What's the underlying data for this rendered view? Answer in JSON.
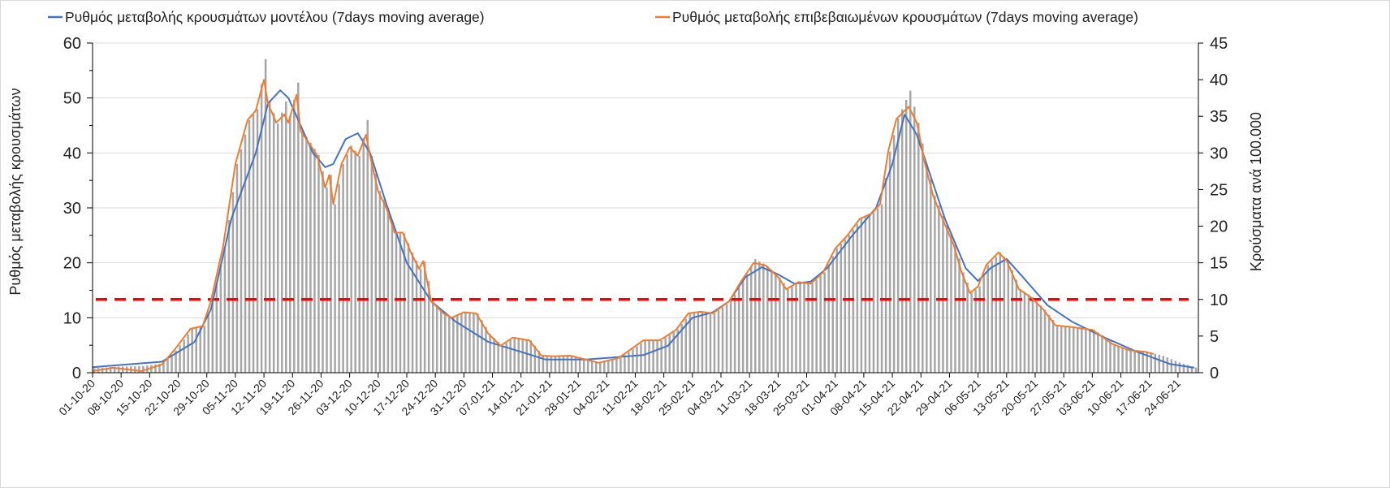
{
  "chart_data": {
    "type": "bar+line",
    "title": "",
    "ylabel_left": "Ρυθμός μεταβολής κρουσμάτων",
    "ylabel_right": "Κρούσματα ανά 100.000",
    "ylim_left": [
      0,
      60
    ],
    "ylim_right": [
      0,
      45
    ],
    "yticks_left": [
      "0",
      "10",
      "20",
      "30",
      "40",
      "50",
      "60"
    ],
    "yticks_right": [
      "0",
      "5",
      "10",
      "15",
      "20",
      "25",
      "30",
      "35",
      "40",
      "45"
    ],
    "x_unit": "days since 01-10-20",
    "x_range": [
      0,
      271
    ],
    "xtick_labels": [
      "01-10-20",
      "08-10-20",
      "15-10-20",
      "22-10-20",
      "29-10-20",
      "05-11-20",
      "12-11-20",
      "19-11-20",
      "26-11-20",
      "03-12-20",
      "10-12-20",
      "17-12-20",
      "24-12-20",
      "31-12-20",
      "07-01-21",
      "14-01-21",
      "21-01-21",
      "28-01-21",
      "04-02-21",
      "11-02-21",
      "18-02-21",
      "25-02-21",
      "04-03-21",
      "11-03-21",
      "18-03-21",
      "25-03-21",
      "01-04-21",
      "08-04-21",
      "15-04-21",
      "22-04-21",
      "29-04-21",
      "06-05-21",
      "13-05-21",
      "20-05-21",
      "27-05-21",
      "03-06-21",
      "10-06-21",
      "17-06-21",
      "24-06-21"
    ],
    "xtick_step_days": 7,
    "grid": true,
    "legend_position": "top",
    "threshold": {
      "axis": "right",
      "value": 10,
      "color": "#ff0000",
      "style": "dashed"
    },
    "bars": {
      "name": "Κρούσματα ανά 100.000",
      "axis": "right",
      "color": "#a6a6a6",
      "points": [
        [
          0,
          0.6
        ],
        [
          5,
          0.8
        ],
        [
          12,
          0.9
        ],
        [
          17,
          1.3
        ],
        [
          20,
          3
        ],
        [
          24,
          6
        ],
        [
          27,
          6.4
        ],
        [
          29,
          10
        ],
        [
          32,
          17
        ],
        [
          35,
          28.5
        ],
        [
          38,
          34.5
        ],
        [
          40,
          36
        ],
        [
          42,
          42.8
        ],
        [
          43,
          37
        ],
        [
          45,
          34
        ],
        [
          47,
          37
        ],
        [
          48,
          35
        ],
        [
          50,
          39.6
        ],
        [
          51,
          33
        ],
        [
          53,
          31.4
        ],
        [
          55,
          29.7
        ],
        [
          57,
          25.3
        ],
        [
          58,
          27
        ],
        [
          59,
          23
        ],
        [
          61,
          28.5
        ],
        [
          63,
          31
        ],
        [
          65,
          29.6
        ],
        [
          67,
          34.5
        ],
        [
          68,
          29.6
        ],
        [
          70,
          24.8
        ],
        [
          72,
          22.5
        ],
        [
          74,
          19
        ],
        [
          76,
          19
        ],
        [
          78,
          16.4
        ],
        [
          80,
          14.2
        ],
        [
          81,
          15.2
        ],
        [
          83,
          9.8
        ],
        [
          86,
          8.1
        ],
        [
          88,
          7.5
        ],
        [
          91,
          8.3
        ],
        [
          94,
          8.1
        ],
        [
          97,
          5.3
        ],
        [
          100,
          3.7
        ],
        [
          103,
          4.8
        ],
        [
          107,
          4.4
        ],
        [
          110,
          2.3
        ],
        [
          113,
          2.3
        ],
        [
          117,
          2.3
        ],
        [
          121,
          1.8
        ],
        [
          124,
          1.4
        ],
        [
          129,
          2
        ],
        [
          135,
          4.4
        ],
        [
          139,
          4.4
        ],
        [
          143,
          5.9
        ],
        [
          146,
          8.1
        ],
        [
          149,
          8.3
        ],
        [
          152,
          8.1
        ],
        [
          156,
          9.8
        ],
        [
          159,
          12.5
        ],
        [
          162,
          15.5
        ],
        [
          165,
          14.6
        ],
        [
          168,
          13
        ],
        [
          170,
          11.4
        ],
        [
          173,
          12.4
        ],
        [
          176,
          12.2
        ],
        [
          179,
          13.7
        ],
        [
          182,
          17
        ],
        [
          185,
          18.8
        ],
        [
          188,
          21
        ],
        [
          191,
          21.8
        ],
        [
          193,
          23
        ],
        [
          195,
          30.2
        ],
        [
          197,
          34.7
        ],
        [
          200,
          38.5
        ],
        [
          202,
          34.1
        ],
        [
          204,
          28.5
        ],
        [
          206,
          24.2
        ],
        [
          208,
          21.4
        ],
        [
          211,
          17.5
        ],
        [
          213,
          13.7
        ],
        [
          215,
          10.9
        ],
        [
          217,
          11.8
        ],
        [
          219,
          14.7
        ],
        [
          222,
          16.4
        ],
        [
          224,
          15.3
        ],
        [
          227,
          11.4
        ],
        [
          230,
          10.3
        ],
        [
          233,
          8.6
        ],
        [
          236,
          6.5
        ],
        [
          240,
          6.2
        ],
        [
          245,
          5.9
        ],
        [
          250,
          3.9
        ],
        [
          254,
          3.1
        ],
        [
          258,
          2.9
        ],
        [
          260,
          2.6
        ],
        [
          262,
          2.3
        ],
        [
          266,
          1.4
        ],
        [
          270,
          0.7
        ]
      ]
    },
    "series": [
      {
        "name": "Ρυθμός μεταβολής κρουσμάτων μοντέλου (7days moving average)",
        "axis": "left",
        "color": "#4472c4",
        "points": [
          [
            0,
            1.0
          ],
          [
            17,
            2
          ],
          [
            25,
            5.6
          ],
          [
            29,
            11.5
          ],
          [
            34,
            28
          ],
          [
            40,
            40
          ],
          [
            43,
            49
          ],
          [
            46,
            51.4
          ],
          [
            48,
            50
          ],
          [
            51,
            45
          ],
          [
            54,
            40
          ],
          [
            57,
            37.4
          ],
          [
            59,
            38
          ],
          [
            62,
            42.5
          ],
          [
            65,
            43.6
          ],
          [
            68,
            40
          ],
          [
            72,
            30.7
          ],
          [
            77,
            20
          ],
          [
            83,
            13
          ],
          [
            89,
            9.3
          ],
          [
            97,
            5.6
          ],
          [
            105,
            3.8
          ],
          [
            111,
            2.4
          ],
          [
            121,
            2.4
          ],
          [
            135,
            3.2
          ],
          [
            141,
            4.9
          ],
          [
            147,
            10
          ],
          [
            152,
            11
          ],
          [
            156,
            13
          ],
          [
            160,
            17.4
          ],
          [
            164,
            19.2
          ],
          [
            168,
            17.9
          ],
          [
            172,
            16.2
          ],
          [
            176,
            16.6
          ],
          [
            180,
            19
          ],
          [
            186,
            24.8
          ],
          [
            192,
            30
          ],
          [
            196,
            38
          ],
          [
            199,
            47
          ],
          [
            202,
            43.3
          ],
          [
            205,
            36.6
          ],
          [
            209,
            27.8
          ],
          [
            214,
            19
          ],
          [
            217,
            16.7
          ],
          [
            220,
            19
          ],
          [
            224,
            20.7
          ],
          [
            228,
            17.4
          ],
          [
            234,
            12.3
          ],
          [
            240,
            9.3
          ],
          [
            248,
            6.4
          ],
          [
            256,
            3.8
          ],
          [
            264,
            1.6
          ],
          [
            270,
            0.9
          ]
        ]
      },
      {
        "name": "Ρυθμός μεταβολής επιβεβαιωμένων κρουσμάτων (7days moving average)",
        "axis": "left",
        "color": "#ed7d31",
        "points": [
          [
            0,
            0.3
          ],
          [
            5,
            0.9
          ],
          [
            12,
            0.3
          ],
          [
            17,
            1.5
          ],
          [
            20,
            4.1
          ],
          [
            24,
            8
          ],
          [
            27,
            8.5
          ],
          [
            29,
            13
          ],
          [
            32,
            23
          ],
          [
            35,
            38
          ],
          [
            38,
            46
          ],
          [
            40,
            47.7
          ],
          [
            42,
            53.3
          ],
          [
            43,
            49
          ],
          [
            45,
            45.5
          ],
          [
            47,
            47
          ],
          [
            48,
            45.5
          ],
          [
            50,
            50.6
          ],
          [
            51,
            44
          ],
          [
            53,
            41.8
          ],
          [
            55,
            39.6
          ],
          [
            57,
            33.7
          ],
          [
            58,
            36
          ],
          [
            59,
            30.7
          ],
          [
            61,
            38
          ],
          [
            63,
            41
          ],
          [
            65,
            39.5
          ],
          [
            67,
            43.3
          ],
          [
            68,
            39.5
          ],
          [
            70,
            33
          ],
          [
            72,
            30
          ],
          [
            74,
            25.5
          ],
          [
            76,
            25.5
          ],
          [
            78,
            21.9
          ],
          [
            80,
            18.9
          ],
          [
            81,
            20.3
          ],
          [
            83,
            13
          ],
          [
            86,
            10.8
          ],
          [
            88,
            10
          ],
          [
            91,
            11
          ],
          [
            94,
            10.8
          ],
          [
            97,
            7.1
          ],
          [
            100,
            4.9
          ],
          [
            103,
            6.4
          ],
          [
            107,
            5.9
          ],
          [
            110,
            3.1
          ],
          [
            113,
            3
          ],
          [
            117,
            3.1
          ],
          [
            121,
            2.4
          ],
          [
            124,
            1.8
          ],
          [
            129,
            2.7
          ],
          [
            135,
            5.9
          ],
          [
            139,
            5.9
          ],
          [
            143,
            7.8
          ],
          [
            146,
            10.8
          ],
          [
            149,
            11.1
          ],
          [
            152,
            10.8
          ],
          [
            156,
            13
          ],
          [
            159,
            16.7
          ],
          [
            162,
            20
          ],
          [
            165,
            19.5
          ],
          [
            168,
            17.4
          ],
          [
            170,
            15.2
          ],
          [
            173,
            16.5
          ],
          [
            176,
            16.2
          ],
          [
            179,
            18.2
          ],
          [
            182,
            22.6
          ],
          [
            185,
            25
          ],
          [
            188,
            28
          ],
          [
            191,
            29
          ],
          [
            193,
            30.7
          ],
          [
            195,
            40.3
          ],
          [
            197,
            46.2
          ],
          [
            200,
            48.4
          ],
          [
            202,
            45.5
          ],
          [
            204,
            38
          ],
          [
            206,
            32.2
          ],
          [
            208,
            28.5
          ],
          [
            211,
            23.3
          ],
          [
            213,
            18.2
          ],
          [
            215,
            14.5
          ],
          [
            217,
            15.7
          ],
          [
            219,
            19.6
          ],
          [
            222,
            21.9
          ],
          [
            224,
            20.4
          ],
          [
            227,
            15.2
          ],
          [
            230,
            13.7
          ],
          [
            233,
            11.5
          ],
          [
            236,
            8.6
          ],
          [
            240,
            8.3
          ],
          [
            245,
            7.8
          ],
          [
            250,
            5.2
          ],
          [
            254,
            4.1
          ],
          [
            258,
            3.8
          ],
          [
            260,
            3.4
          ]
        ]
      }
    ]
  }
}
